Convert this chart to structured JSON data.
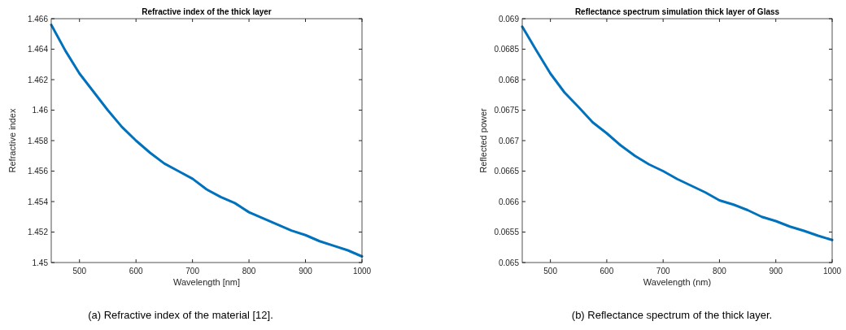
{
  "chart_data": [
    {
      "type": "line",
      "title": "Refractive index of the thick layer",
      "xlabel": "Wavelength [nm]",
      "ylabel": "Refractive index",
      "annotations": [
        "(a) Refractive index of the material [12]."
      ],
      "x": [
        450,
        475,
        500,
        525,
        550,
        575,
        600,
        625,
        650,
        675,
        700,
        725,
        750,
        775,
        800,
        825,
        850,
        875,
        900,
        925,
        950,
        975,
        1000
      ],
      "series": [
        {
          "color": "#0072bd",
          "values": [
            1.4656,
            1.4639,
            1.4624,
            1.4612,
            1.46,
            1.4589,
            1.458,
            1.4572,
            1.4565,
            1.456,
            1.4555,
            1.4548,
            1.4543,
            1.4539,
            1.4533,
            1.4529,
            1.4525,
            1.4521,
            1.4518,
            1.4514,
            1.4511,
            1.4508,
            1.4504
          ]
        }
      ],
      "xlim": [
        450,
        1000
      ],
      "xticks": [
        500,
        600,
        700,
        800,
        900,
        1000
      ],
      "ylim": [
        1.45,
        1.466
      ],
      "yticks": [
        1.45,
        1.452,
        1.454,
        1.456,
        1.458,
        1.46,
        1.462,
        1.464,
        1.466
      ],
      "grid": false,
      "marker": "none",
      "line_style": "solid"
    },
    {
      "type": "line",
      "title": "Reflectance spectrum simulation thick layer of Glass",
      "xlabel": "Wavelength (nm)",
      "ylabel": "Reflected power",
      "annotations": [
        "(b) Reflectance spectrum of the thick layer."
      ],
      "x": [
        450,
        475,
        500,
        525,
        550,
        575,
        600,
        625,
        650,
        675,
        700,
        725,
        750,
        775,
        800,
        825,
        850,
        875,
        900,
        925,
        950,
        975,
        1000
      ],
      "series": [
        {
          "color": "#0072bd",
          "values": [
            0.06887,
            0.06848,
            0.0681,
            0.06779,
            0.06755,
            0.0673,
            0.06712,
            0.06692,
            0.06675,
            0.06661,
            0.0665,
            0.06637,
            0.06626,
            0.06615,
            0.06602,
            0.06595,
            0.06586,
            0.06575,
            0.06568,
            0.06559,
            0.06552,
            0.06544,
            0.06537
          ]
        }
      ],
      "xlim": [
        450,
        1000
      ],
      "xticks": [
        500,
        600,
        700,
        800,
        900,
        1000
      ],
      "ylim": [
        0.065,
        0.069
      ],
      "yticks": [
        0.065,
        0.0655,
        0.066,
        0.0665,
        0.067,
        0.0675,
        0.068,
        0.0685,
        0.069
      ],
      "grid": false,
      "marker": "none",
      "line_style": "solid"
    }
  ]
}
